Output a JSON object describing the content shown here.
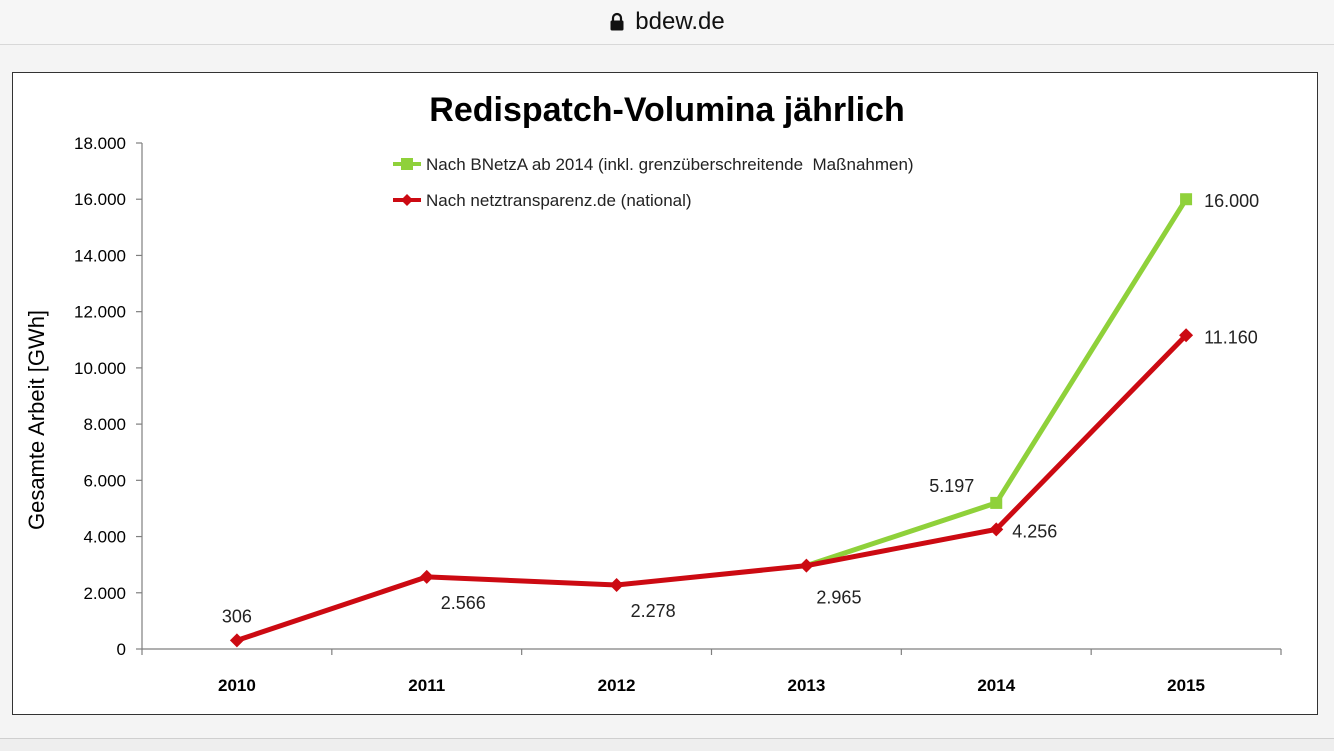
{
  "browser": {
    "url": "bdew.de",
    "lock_icon": "lock-icon"
  },
  "chart_data": {
    "type": "line",
    "title": "Redispatch-Volumina jährlich",
    "xlabel": "",
    "ylabel": "Gesamte Arbeit [GWh]",
    "categories": [
      "2010",
      "2011",
      "2012",
      "2013",
      "2014",
      "2015"
    ],
    "ylim": [
      0,
      18000
    ],
    "yticks": [
      0,
      2000,
      4000,
      6000,
      8000,
      10000,
      12000,
      14000,
      16000,
      18000
    ],
    "ytick_labels": [
      "0",
      "2.000",
      "4.000",
      "6.000",
      "8.000",
      "10.000",
      "12.000",
      "14.000",
      "16.000",
      "18.000"
    ],
    "grid": false,
    "legend_position": "top-center",
    "series": [
      {
        "name": "Nach BNetzA ab 2014 (inkl. grenzüberschreitende  Maßnahmen)",
        "color": "#8fd13a",
        "marker": "square",
        "values": [
          null,
          null,
          null,
          2965,
          5197,
          16000
        ],
        "data_labels": [
          null,
          null,
          null,
          null,
          "5.197",
          "16.000"
        ]
      },
      {
        "name": "Nach netztransparenz.de (national)",
        "color": "#cc0a12",
        "marker": "diamond",
        "values": [
          306,
          2566,
          2278,
          2965,
          4256,
          11160
        ],
        "data_labels": [
          "306",
          "2.566",
          "2.278",
          "2.965",
          "4.256",
          "11.160"
        ]
      }
    ]
  }
}
